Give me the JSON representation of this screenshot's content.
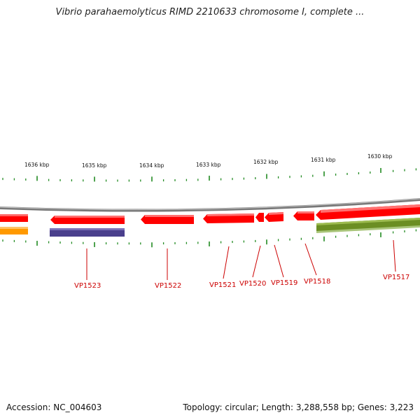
{
  "title": "Vibrio parahaemolyticus RIMD 2210633 chromosome I, complete ...",
  "footer": {
    "accession": "Accession: NC_004603",
    "summary": "Topology: circular; Length: 3,288,558 bp; Genes: 3,223"
  },
  "ruler": {
    "ticks": [
      "1636 kbp",
      "1635 kbp",
      "1634 kbp",
      "1633 kbp",
      "1632 kbp",
      "1631 kbp",
      "1630 kbp"
    ]
  },
  "genes": [
    {
      "label": "VP1523",
      "color": "#ff0000",
      "protein_color": "#4a3f8c"
    },
    {
      "label": "VP1522",
      "color": "#ff0000"
    },
    {
      "label": "VP1521",
      "color": "#ff0000"
    },
    {
      "label": "VP1520",
      "color": "#ff0000"
    },
    {
      "label": "VP1519",
      "color": "#ff0000"
    },
    {
      "label": "VP1518",
      "color": "#ff0000"
    },
    {
      "label": "VP1517",
      "color": "#ff0000",
      "protein_color": "#6b8e23"
    }
  ],
  "colors": {
    "backbone": "#888888",
    "tick": "#228b22",
    "label": "#cc0000",
    "left_orange": "#ff9900"
  }
}
